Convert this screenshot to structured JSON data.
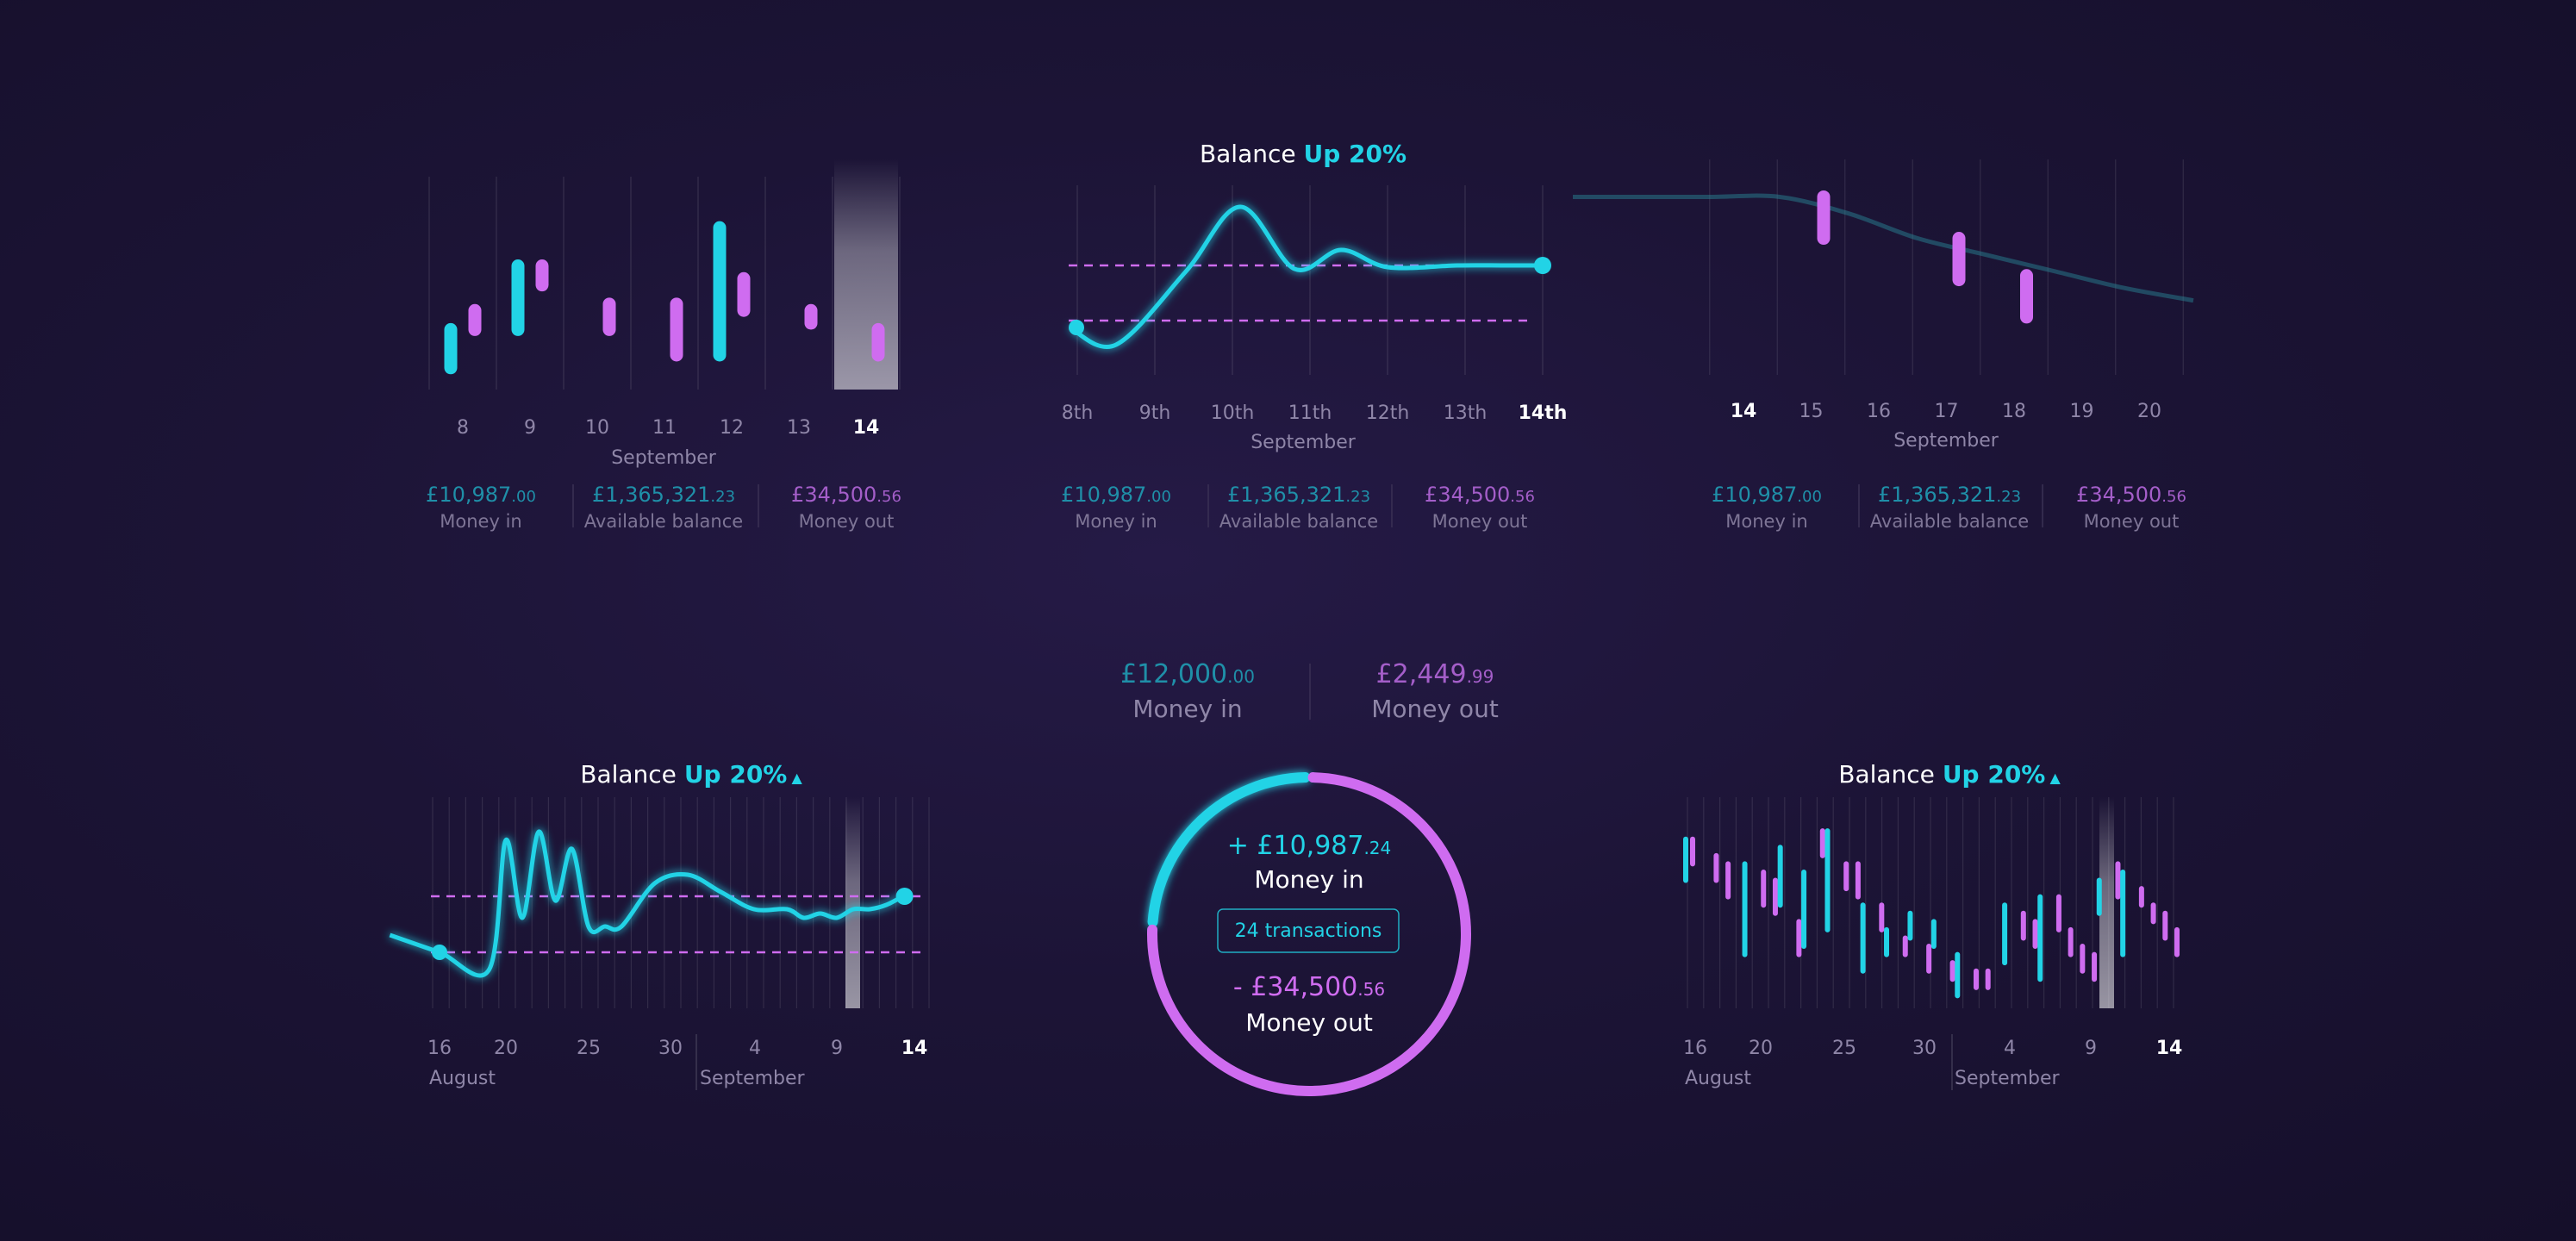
{
  "colors": {
    "cyan": "#22d3e6",
    "magenta": "#cf6cf0",
    "background": "#1c1436"
  },
  "chart_data": [
    {
      "type": "bar",
      "categories": [
        "8",
        "9",
        "10",
        "11",
        "12",
        "13",
        "14"
      ],
      "month": "September",
      "highlight": "14",
      "series": [
        {
          "color": "cyan",
          "ranges": [
            [
              -20,
              40
            ],
            [
              40,
              140
            ],
            null,
            null,
            [
              0,
              200
            ],
            null,
            null
          ]
        },
        {
          "color": "magenta",
          "ranges": [
            [
              40,
              70
            ],
            [
              110,
              140
            ],
            [
              40,
              80
            ],
            [
              0,
              80
            ],
            [
              70,
              120
            ],
            [
              50,
              70
            ],
            [
              0,
              40
            ]
          ]
        }
      ],
      "ylim": [
        0,
        280
      ],
      "summary": {
        "money_in": "£10,987",
        "money_in_dec": ".00",
        "money_in_label": "Money in",
        "balance": "£1,365,321",
        "balance_dec": ".23",
        "balance_label": "Available balance",
        "money_out": "£34,500",
        "money_out_dec": ".56",
        "money_out_label": "Money out"
      }
    },
    {
      "type": "line",
      "title": "Balance",
      "title_highlight": "Up 20%",
      "categories": [
        "8th",
        "9th",
        "10th",
        "11th",
        "12th",
        "13th",
        "14th"
      ],
      "month": "September",
      "highlight": "14th",
      "x": [
        7.9,
        8.5,
        9.4,
        10.1,
        10.8,
        11.4,
        12.0,
        12.9,
        13.5,
        14.0
      ],
      "y": [
        60,
        40,
        125,
        200,
        128,
        150,
        130,
        132,
        132,
        132
      ],
      "thresholds": [
        132,
        68
      ],
      "ylim": [
        0,
        240
      ],
      "summary": {
        "money_in": "£10,987",
        "money_in_dec": ".00",
        "money_in_label": "Money in",
        "balance": "£1,365,321",
        "balance_dec": ".23",
        "balance_label": "Available balance",
        "money_out": "£34,500",
        "money_out_dec": ".56",
        "money_out_label": "Money out"
      }
    },
    {
      "type": "bar",
      "categories": [
        "14",
        "15",
        "16",
        "17",
        "18",
        "19",
        "20"
      ],
      "month": "September",
      "highlight": "14",
      "series": [
        {
          "color": "magenta",
          "ranges": [
            null,
            [
              170,
              220
            ],
            null,
            [
              120,
              170
            ],
            [
              75,
              125
            ],
            null,
            null
          ]
        }
      ],
      "trend_y": [
        220,
        220,
        220,
        220,
        200,
        170,
        150,
        130,
        110,
        95
      ],
      "ylim": [
        0,
        260
      ],
      "summary": {
        "money_in": "£10,987",
        "money_in_dec": ".00",
        "money_in_label": "Money in",
        "balance": "£1,365,321",
        "balance_dec": ".23",
        "balance_label": "Available balance",
        "money_out": "£34,500",
        "money_out_dec": ".56",
        "money_out_label": "Money out"
      }
    },
    {
      "type": "line",
      "title": "Balance",
      "title_highlight": "Up 20%",
      "x_ticks": [
        "16",
        "20",
        "25",
        "30",
        "4",
        "9",
        "14"
      ],
      "months": [
        "August",
        "September"
      ],
      "highlight": "14",
      "x": [
        13,
        16,
        19,
        20,
        21,
        22,
        23,
        24,
        25,
        26,
        27,
        29,
        31,
        33,
        35,
        37,
        38,
        39,
        40,
        41,
        42,
        43,
        44
      ],
      "y": [
        90,
        70,
        50,
        200,
        110,
        210,
        130,
        190,
        100,
        100,
        100,
        150,
        160,
        140,
        120,
        120,
        110,
        115,
        110,
        120,
        120,
        125,
        135
      ],
      "thresholds": [
        135,
        70
      ],
      "ylim": [
        0,
        260
      ]
    },
    {
      "type": "pie",
      "top": {
        "money_in": "£12,000",
        "money_in_dec": ".00",
        "money_in_label": "Money in",
        "money_out": "£2,449",
        "money_out_dec": ".99",
        "money_out_label": "Money out"
      },
      "slices": [
        {
          "label": "Money in",
          "value": 10987.24,
          "color": "cyan"
        },
        {
          "label": "Money out",
          "value": 34500.56,
          "color": "magenta"
        }
      ],
      "money_in_text": "+ £10,987",
      "money_in_dec": ".24",
      "money_in_label": "Money in",
      "button": "24 transactions",
      "money_out_text": "- £34,500",
      "money_out_dec": ".56",
      "money_out_label": "Money out"
    },
    {
      "type": "bar",
      "title": "Balance",
      "title_highlight": "Up 20%",
      "x_ticks": [
        "16",
        "20",
        "25",
        "30",
        "4",
        "9",
        "14"
      ],
      "months": [
        "August",
        "September"
      ],
      "highlight": "14",
      "series": [
        {
          "color": "cyan",
          "ranges": [
            [
              150,
              200
            ],
            null,
            null,
            null,
            null,
            [
              60,
              170
            ],
            null,
            null,
            [
              120,
              190
            ],
            null,
            [
              70,
              160
            ],
            null,
            [
              90,
              210
            ],
            null,
            null,
            [
              40,
              120
            ],
            null,
            [
              60,
              90
            ],
            null,
            [
              80,
              110
            ],
            null,
            [
              70,
              100
            ],
            null,
            [
              10,
              60
            ],
            null,
            null,
            null,
            [
              50,
              120
            ],
            null,
            null,
            [
              30,
              130
            ],
            null,
            null,
            null,
            null,
            [
              110,
              150
            ],
            null,
            [
              60,
              160
            ],
            null,
            null,
            null,
            null
          ]
        },
        {
          "color": "magenta",
          "ranges": [
            [
              170,
              200
            ],
            null,
            [
              150,
              180
            ],
            [
              130,
              170
            ],
            null,
            null,
            [
              120,
              160
            ],
            [
              110,
              150
            ],
            null,
            [
              60,
              100
            ],
            null,
            [
              180,
              210
            ],
            null,
            [
              140,
              170
            ],
            [
              130,
              170
            ],
            null,
            [
              90,
              120
            ],
            null,
            [
              60,
              80
            ],
            null,
            [
              40,
              70
            ],
            null,
            [
              30,
              50
            ],
            null,
            [
              20,
              40
            ],
            [
              20,
              40
            ],
            null,
            null,
            [
              80,
              110
            ],
            [
              70,
              100
            ],
            null,
            [
              90,
              130
            ],
            [
              60,
              90
            ],
            [
              40,
              70
            ],
            [
              30,
              60
            ],
            null,
            [
              130,
              170
            ],
            null,
            [
              120,
              140
            ],
            [
              100,
              120
            ],
            [
              80,
              110
            ],
            [
              60,
              90
            ]
          ]
        }
      ],
      "ylim": [
        0,
        230
      ]
    }
  ]
}
